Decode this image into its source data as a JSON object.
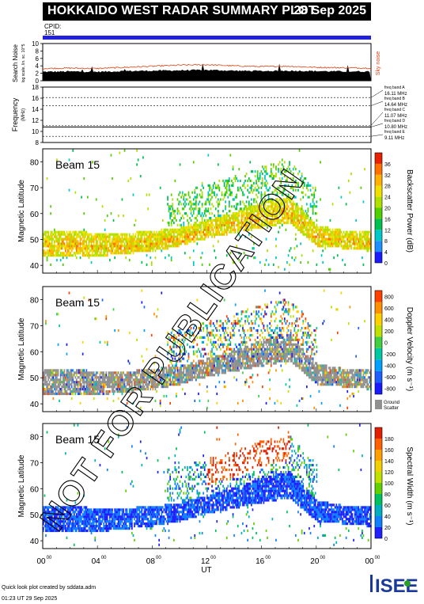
{
  "header": {
    "title": "HOKKAIDO WEST RADAR SUMMARY PLOT",
    "date": "28 Sep 2025",
    "cpid_label": "CPID:",
    "cpid_value": "151"
  },
  "colors": {
    "cpid_bar": "#2222dd",
    "noise_line": "#e04010",
    "ground_scatter": "#909090"
  },
  "footer": {
    "credit": "Quick look plot created by sddata.adm",
    "timestamp": "01:23 UT 29 Sep 2025",
    "logo_text": "ISEE",
    "watermark": "NOT FOR PUBLICATION"
  },
  "chart_data": [
    {
      "type": "area",
      "ylabel": "Search Noise",
      "ylabel2": "log scale, lin. sc. 10^5",
      "right_label": "Sky noise",
      "yticks": [
        0,
        2,
        4,
        6,
        8,
        10
      ],
      "ylim": [
        0,
        10
      ],
      "x": [
        0,
        2,
        4,
        6,
        8,
        10,
        12,
        14,
        16,
        18,
        20,
        22,
        24
      ],
      "series": [
        {
          "name": "Sky noise",
          "values": [
            3.3,
            3.4,
            3.3,
            3.6,
            3.9,
            4.2,
            4.3,
            4.0,
            3.8,
            3.9,
            3.6,
            3.5,
            3.4
          ]
        },
        {
          "values": [
            2.4,
            2.5,
            2.4,
            2.6,
            2.7,
            2.8,
            2.9,
            2.7,
            2.6,
            2.7,
            2.6,
            2.5,
            2.5
          ]
        }
      ]
    },
    {
      "type": "line",
      "ylabel": "Frequency",
      "ylabel2": "(MHz)",
      "yticks": [
        8,
        10,
        12,
        14,
        16,
        18
      ],
      "ylim": [
        8,
        18
      ],
      "bands": [
        {
          "label": "freq band A",
          "value": "16.11 MHz",
          "mhz": 16.11
        },
        {
          "label": "freq band B",
          "value": "14.64 MHz",
          "mhz": 14.64
        },
        {
          "label": "freq band C",
          "value": "11.07 MHz",
          "mhz": 11.07
        },
        {
          "label": "freq band D",
          "value": "10.80 MHz",
          "mhz": 10.8
        },
        {
          "label": "freq band E",
          "value": "9.11 MHz",
          "mhz": 9.11
        }
      ]
    },
    {
      "type": "heatmap",
      "beam": "Beam 15",
      "ylabel": "Magnetic Latitude",
      "yticks": [
        40,
        50,
        60,
        70,
        80
      ],
      "ylim": [
        37,
        85
      ],
      "colorbar": {
        "label": "Backscatter Power (dB)",
        "ticks": [
          "0",
          "4",
          "8",
          "12",
          "16",
          "20",
          "24",
          "28",
          "32",
          "36"
        ],
        "colors": [
          "#1a1aff",
          "#1e90ff",
          "#00c8c8",
          "#00c050",
          "#50d000",
          "#b0e000",
          "#f0e000",
          "#ffb000",
          "#ff7000",
          "#e82000"
        ]
      },
      "x": [
        0,
        2,
        4,
        6,
        8,
        10,
        12,
        14,
        16,
        18,
        20,
        22,
        24
      ],
      "echo_band_low": [
        43,
        43,
        43,
        44,
        45,
        47,
        50,
        52,
        54,
        56,
        47,
        46,
        45
      ],
      "echo_band_high": [
        53,
        53,
        52,
        52,
        53,
        54,
        57,
        60,
        64,
        66,
        55,
        53,
        53
      ]
    },
    {
      "type": "heatmap",
      "beam": "Beam 15",
      "ylabel": "Magnetic Latitude",
      "yticks": [
        40,
        50,
        60,
        70,
        80
      ],
      "ylim": [
        37,
        85
      ],
      "colorbar": {
        "label": "Doppler Velocity (m s⁻¹)",
        "ticks": [
          "800",
          "600",
          "400",
          "200",
          "0",
          "-200",
          "-400",
          "-600",
          "-800"
        ],
        "colors": [
          "#1a1aff",
          "#1e60ff",
          "#00a0ff",
          "#00c8a0",
          "#40d040",
          "#c0e000",
          "#ffd000",
          "#ff9000",
          "#ff4000"
        ],
        "ground_scatter_label": "Ground Scatter"
      },
      "x": [
        0,
        2,
        4,
        6,
        8,
        10,
        12,
        14,
        16,
        18,
        20,
        22,
        24
      ],
      "echo_band_low": [
        43,
        43,
        43,
        44,
        45,
        47,
        50,
        52,
        54,
        56,
        47,
        46,
        45
      ],
      "echo_band_high": [
        53,
        53,
        52,
        52,
        53,
        54,
        57,
        60,
        64,
        66,
        55,
        53,
        53
      ]
    },
    {
      "type": "heatmap",
      "beam": "Beam 15",
      "ylabel": "Magnetic Latitude",
      "xlabel": "UT",
      "xticks": [
        "00",
        "04",
        "08",
        "12",
        "16",
        "20",
        "00"
      ],
      "yticks": [
        40,
        50,
        60,
        70,
        80
      ],
      "ylim": [
        37,
        85
      ],
      "colorbar": {
        "label": "Spectral Width (m s⁻¹)",
        "ticks": [
          "0",
          "20",
          "40",
          "60",
          "80",
          "100",
          "120",
          "140",
          "160",
          "180"
        ],
        "colors": [
          "#2020ff",
          "#1080ff",
          "#00b0c0",
          "#00c060",
          "#60d000",
          "#c0e000",
          "#f0d000",
          "#ffa000",
          "#ff6000",
          "#e02000"
        ]
      },
      "x": [
        0,
        2,
        4,
        6,
        8,
        10,
        12,
        14,
        16,
        18,
        20,
        22,
        24
      ],
      "echo_band_low": [
        43,
        43,
        43,
        44,
        45,
        47,
        50,
        52,
        54,
        56,
        47,
        46,
        45
      ],
      "echo_band_high": [
        53,
        53,
        52,
        52,
        53,
        54,
        57,
        60,
        64,
        66,
        55,
        53,
        53
      ]
    }
  ]
}
